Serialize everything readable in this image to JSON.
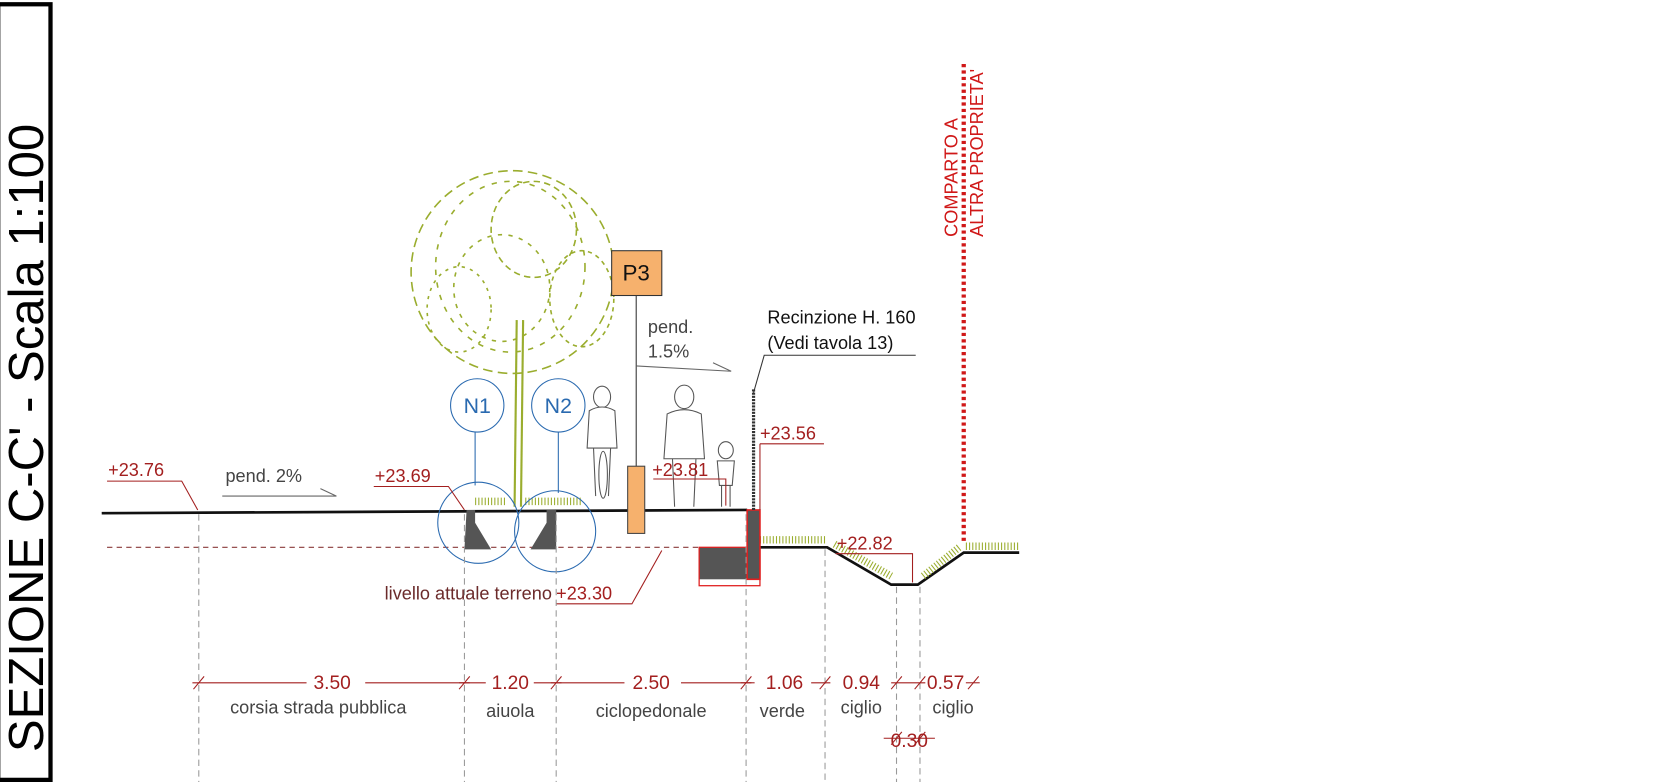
{
  "title": "SEZIONE C-C' - Scala 1:100",
  "elevations": [
    "+23.76",
    "+23.69",
    "+23.81",
    "+23.56",
    "+22.82",
    "+23.30"
  ],
  "slopes": {
    "road": "pend. 2%",
    "path_line1": "pend.",
    "path_line2": "1.5%"
  },
  "symbols": {
    "n1": "N1",
    "n2": "N2",
    "p3": "P3"
  },
  "fence_note": {
    "line1": "Recinzione H. 160",
    "line2": "(Vedi tavola 13)"
  },
  "terrain_note": "livello attuale terreno",
  "property": {
    "line1": "COMPARTO A",
    "line2": "ALTRA PROPRIETA'"
  },
  "dimensions": [
    {
      "value": "3.50",
      "label": "corsia strada pubblica"
    },
    {
      "value": "1.20",
      "label": "aiuola"
    },
    {
      "value": "2.50",
      "label": "ciclopedonale"
    },
    {
      "value": "1.06",
      "label": "verde"
    },
    {
      "value": "0.94",
      "label": "ciglio"
    },
    {
      "value": "0.57",
      "label": "ciglio"
    },
    {
      "value": "0.30"
    }
  ]
}
